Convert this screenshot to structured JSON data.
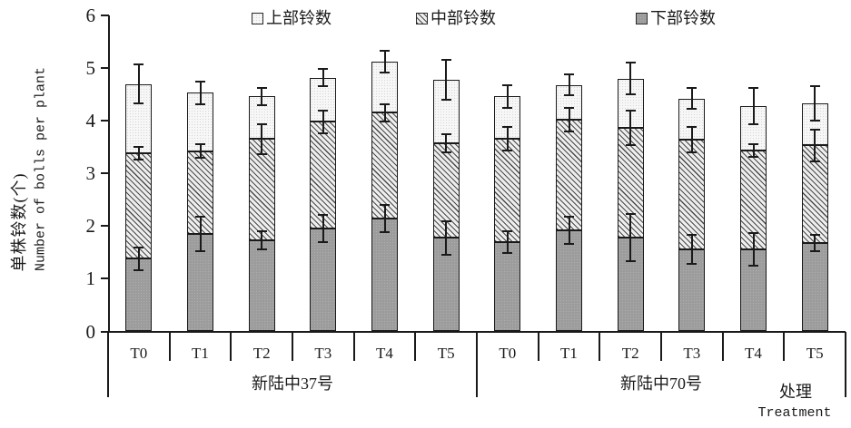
{
  "figure": {
    "background": "#ffffff",
    "line_color": "#1a1a1a"
  },
  "legend": {
    "items": [
      {
        "name": "upper",
        "label": "上部铃数"
      },
      {
        "name": "middle",
        "label": "中部铃数"
      },
      {
        "name": "lower",
        "label": "下部铃数"
      }
    ]
  },
  "y_axis": {
    "title_zh": "单株铃数(个)",
    "title_en": "Number of bolls per plant",
    "tick_labels": [
      "0",
      "1",
      "2",
      "3",
      "4",
      "5",
      "6"
    ]
  },
  "x_axis": {
    "title_zh": "处理",
    "title_en": "Treatment"
  },
  "chart_data": {
    "type": "bar",
    "stacked": true,
    "title": "",
    "xlabel": "处理 Treatment",
    "ylabel": "单株铃数(个) Number of bolls per plant",
    "ylim": [
      0,
      6
    ],
    "grid": false,
    "legend_position": "top",
    "categories": [
      "T0",
      "T1",
      "T2",
      "T3",
      "T4",
      "T5"
    ],
    "series_names": [
      "下部铃数",
      "中部铃数",
      "上部铃数"
    ],
    "error_bar_note": "err = half-length of error bars at [lower-top, lower+middle-top, total-top]",
    "colors": {
      "lower_fill": "#9c9c9c",
      "middle_fill": "hatch-diagonal",
      "upper_fill": "#f7f7f7",
      "outline": "#1a1a1a"
    },
    "groups": [
      {
        "name": "新陆中37号",
        "bars": [
          {
            "label": "T0",
            "lower": 1.38,
            "middle": 2.0,
            "upper": 1.32,
            "err": [
              0.22,
              0.12,
              0.37
            ]
          },
          {
            "label": "T1",
            "lower": 1.85,
            "middle": 1.57,
            "upper": 1.11,
            "err": [
              0.33,
              0.13,
              0.22
            ]
          },
          {
            "label": "T2",
            "lower": 1.73,
            "middle": 1.92,
            "upper": 0.81,
            "err": [
              0.18,
              0.28,
              0.17
            ]
          },
          {
            "label": "T3",
            "lower": 1.95,
            "middle": 2.03,
            "upper": 0.84,
            "err": [
              0.26,
              0.21,
              0.17
            ]
          },
          {
            "label": "T4",
            "lower": 2.15,
            "middle": 2.0,
            "upper": 0.97,
            "err": [
              0.26,
              0.17,
              0.2
            ]
          },
          {
            "label": "T5",
            "lower": 1.78,
            "middle": 1.79,
            "upper": 1.21,
            "err": [
              0.32,
              0.17,
              0.38
            ]
          }
        ]
      },
      {
        "name": "新陆中70号",
        "bars": [
          {
            "label": "T0",
            "lower": 1.7,
            "middle": 1.96,
            "upper": 0.8,
            "err": [
              0.21,
              0.22,
              0.21
            ]
          },
          {
            "label": "T1",
            "lower": 1.92,
            "middle": 2.1,
            "upper": 0.66,
            "err": [
              0.25,
              0.23,
              0.2
            ]
          },
          {
            "label": "T2",
            "lower": 1.78,
            "middle": 2.09,
            "upper": 0.93,
            "err": [
              0.45,
              0.33,
              0.3
            ]
          },
          {
            "label": "T3",
            "lower": 1.56,
            "middle": 2.08,
            "upper": 0.78,
            "err": [
              0.28,
              0.24,
              0.2
            ]
          },
          {
            "label": "T4",
            "lower": 1.56,
            "middle": 1.88,
            "upper": 0.84,
            "err": [
              0.31,
              0.12,
              0.34
            ]
          },
          {
            "label": "T5",
            "lower": 1.68,
            "middle": 1.85,
            "upper": 0.8,
            "err": [
              0.16,
              0.3,
              0.32
            ]
          }
        ]
      }
    ]
  }
}
